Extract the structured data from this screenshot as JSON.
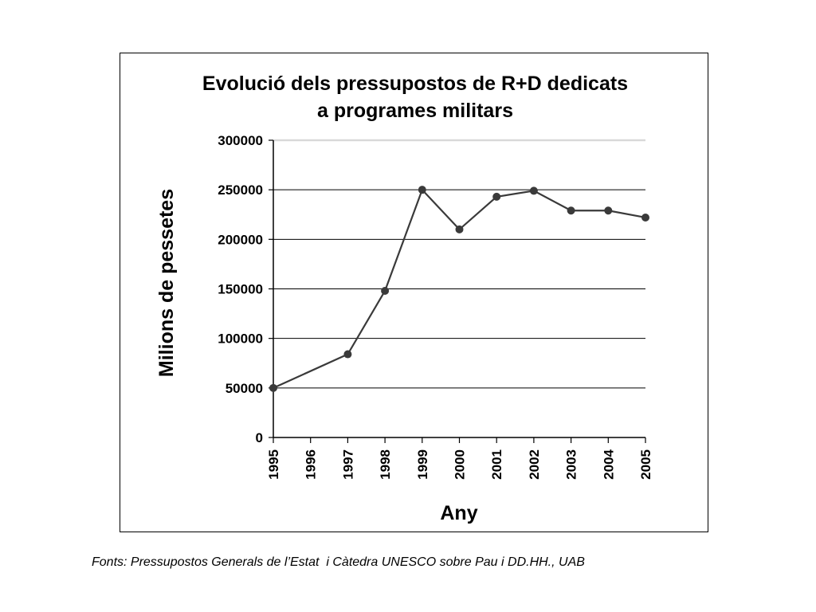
{
  "chart_data": {
    "type": "line",
    "title_lines": [
      "Evolució dels pressupostos de R+D dedicats",
      "a programes militars"
    ],
    "xlabel": "Any",
    "ylabel": "Milions de pessetes",
    "x_ticks": [
      "1995",
      "1996",
      "1997",
      "1998",
      "1999",
      "2000",
      "2001",
      "2002",
      "2003",
      "2004",
      "2005"
    ],
    "y_ticks": [
      "0",
      "50000",
      "100000",
      "150000",
      "200000",
      "250000",
      "300000"
    ],
    "ylim": [
      0,
      300000
    ],
    "grid": true,
    "series": [
      {
        "x": [
          1995,
          1997,
          1998,
          1999,
          2000,
          2001,
          2002,
          2003,
          2004,
          2005
        ],
        "values": [
          50000,
          84000,
          148000,
          250000,
          210000,
          243000,
          249000,
          229000,
          229000,
          222000
        ]
      }
    ],
    "line_color": "#3a3a3a",
    "grid_color": "#000000"
  },
  "footer": {
    "source": "Fonts: Pressupostos Generals de l’Estat  i Càtedra UNESCO sobre Pau i DD.HH., UAB"
  }
}
